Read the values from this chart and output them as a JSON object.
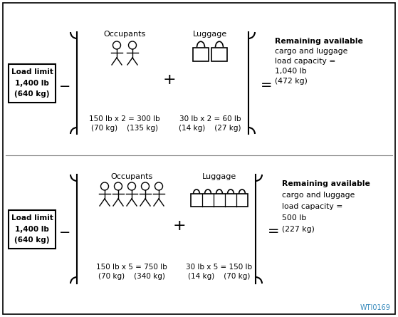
{
  "bg_color": "#ffffff",
  "border_color": "#000000",
  "text_color": "#000000",
  "fig_width": 5.59,
  "fig_height": 4.45,
  "watermark": "WTI0169",
  "row1": {
    "load_limit_lines": [
      "Load limit",
      "1,400 lb",
      "(640 kg)"
    ],
    "occupants_label": "Occupants",
    "occupants_count": 2,
    "occupants_text1": "150 lb x 2 = 300 lb",
    "occupants_text2": "(70 kg)    (135 kg)",
    "luggage_label": "Luggage",
    "luggage_count": 2,
    "luggage_text1": "30 lb x 2 = 60 lb",
    "luggage_text2": "(14 kg)    (27 kg)",
    "result_lines": [
      "Remaining available",
      "cargo and luggage",
      "load capacity =",
      "1,040 lb",
      "(472 kg)"
    ]
  },
  "row2": {
    "load_limit_lines": [
      "Load limit",
      "1,400 lb",
      "(640 kg)"
    ],
    "occupants_label": "Occupants",
    "occupants_count": 5,
    "occupants_text1": "150 lb x 5 = 750 lb",
    "occupants_text2": "(70 kg)    (340 kg)",
    "luggage_label": "Luggage",
    "luggage_count": 5,
    "luggage_text1": "30 lb x 5 = 150 lb",
    "luggage_text2": "(14 kg)    (70 kg)",
    "result_lines": [
      "Remaining available",
      "cargo and luggage",
      "load capacity =",
      "500 lb",
      "(227 kg)"
    ]
  }
}
